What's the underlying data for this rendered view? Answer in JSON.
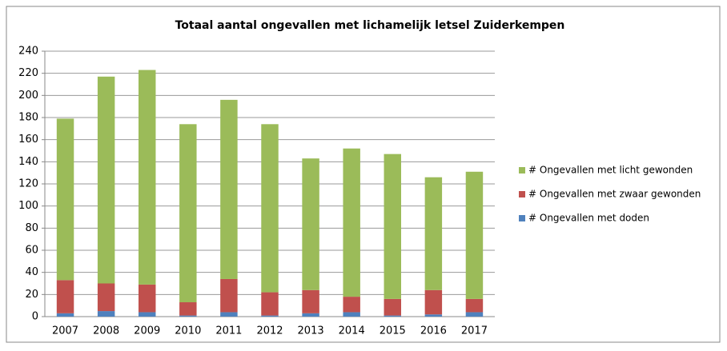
{
  "chart_data": {
    "type": "stacked_bar",
    "title": "Totaal aantal ongevallen met lichamelijk letsel Zuiderkempen",
    "categories": [
      "2007",
      "2008",
      "2009",
      "2010",
      "2011",
      "2012",
      "2013",
      "2014",
      "2015",
      "2016",
      "2017"
    ],
    "series": [
      {
        "name": "# Ongevallen met doden",
        "color": "#4f81bd",
        "values": [
          3,
          5,
          4,
          1,
          4,
          1,
          3,
          4,
          1,
          2,
          4
        ]
      },
      {
        "name": "# Ongevallen met zwaar gewonden",
        "color": "#c0504d",
        "values": [
          30,
          25,
          25,
          12,
          30,
          21,
          21,
          14,
          15,
          22,
          12
        ]
      },
      {
        "name": "# Ongevallen met licht gewonden",
        "color": "#9bbb59",
        "values": [
          146,
          187,
          194,
          161,
          162,
          152,
          119,
          134,
          131,
          102,
          115
        ]
      }
    ],
    "ylim": [
      0,
      240
    ],
    "yticks": [
      0,
      20,
      40,
      60,
      80,
      100,
      120,
      140,
      160,
      180,
      200,
      220,
      240
    ],
    "grid": true,
    "legend": "right"
  }
}
